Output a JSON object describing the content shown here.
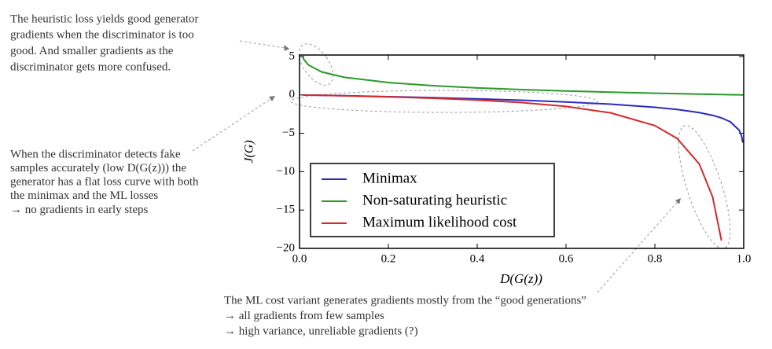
{
  "chart_data": {
    "type": "line",
    "xlabel": "D(G(z))",
    "ylabel": "J(G)",
    "x": [
      0.007,
      0.01,
      0.02,
      0.05,
      0.1,
      0.2,
      0.3,
      0.4,
      0.5,
      0.6,
      0.7,
      0.8,
      0.85,
      0.9,
      0.93,
      0.95,
      0.97,
      0.99,
      0.995,
      0.998
    ],
    "series": [
      {
        "name": "Minimax",
        "color": "#2b2bbf",
        "values": [
          -0.007,
          -0.01,
          -0.02,
          -0.05,
          -0.105,
          -0.223,
          -0.357,
          -0.511,
          -0.693,
          -0.916,
          -1.204,
          -1.609,
          -1.897,
          -2.303,
          -2.659,
          -2.996,
          -3.507,
          -4.605,
          -5.298,
          -6.215
        ]
      },
      {
        "name": "Non-saturating heuristic",
        "color": "#2a9a2a",
        "values": [
          4.962,
          4.605,
          3.912,
          2.996,
          2.303,
          1.609,
          1.204,
          0.916,
          0.693,
          0.511,
          0.357,
          0.223,
          0.163,
          0.105,
          0.073,
          0.051,
          0.03,
          0.01,
          0.005,
          0.002
        ]
      },
      {
        "name": "Maximum likelihood cost",
        "color": "#d42a2a",
        "values": [
          -0.007,
          -0.01,
          -0.02,
          -0.053,
          -0.111,
          -0.25,
          -0.429,
          -0.667,
          -1,
          -1.5,
          -2.333,
          -4,
          -5.667,
          -9,
          -13.29,
          -19,
          null,
          null,
          null,
          null
        ]
      }
    ],
    "xlim": [
      0,
      1
    ],
    "ylim": [
      -20,
      5.2
    ],
    "xticks": [
      {
        "value": 0,
        "label": "0.0"
      },
      0.2,
      0.4,
      0.6,
      0.8,
      {
        "value": 1,
        "label": "1.0"
      }
    ],
    "yticks": [
      {
        "value": -20,
        "label": "−20"
      },
      {
        "value": -15,
        "label": "−15"
      },
      {
        "value": -10,
        "label": "−10"
      },
      {
        "value": -5,
        "label": "−5"
      },
      0,
      5
    ],
    "legend": "lower left",
    "annotations": [
      [
        "The heuristic loss yields good generator",
        "gradients when the discriminator is too",
        "good. And smaller gradients as the",
        "discriminator gets more confused."
      ],
      [
        "When the discriminator detects fake",
        "samples accurately (low D(G(z))) the",
        "generator has a flat loss curve with both",
        "the minimax and the ML losses",
        "→ no gradients in early steps"
      ],
      [
        "The ML cost variant generates gradients mostly from the “good generations”",
        "→ all gradients from few samples",
        "→ high variance, unreliable gradients (?)"
      ]
    ]
  }
}
